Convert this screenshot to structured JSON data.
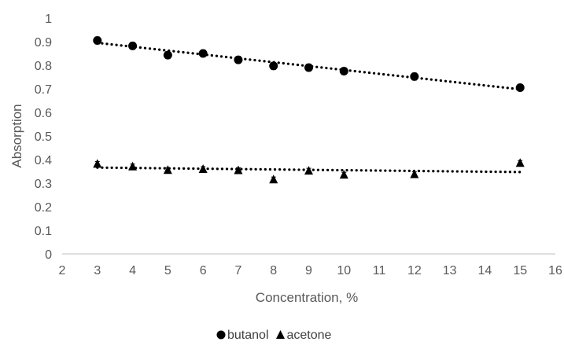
{
  "chart_data": {
    "type": "scatter",
    "title": "",
    "xlabel": "Concentration, %",
    "ylabel": "Absorption",
    "xlim": [
      2,
      16
    ],
    "ylim": [
      0,
      1
    ],
    "x_ticks": [
      "2",
      "3",
      "4",
      "5",
      "6",
      "7",
      "8",
      "9",
      "10",
      "11",
      "12",
      "13",
      "14",
      "15",
      "16"
    ],
    "y_ticks": [
      "0",
      "0.1",
      "0.2",
      "0.3",
      "0.4",
      "0.5",
      "0.6",
      "0.7",
      "0.8",
      "0.9",
      "1"
    ],
    "grid": false,
    "legend_position": "bottom",
    "trendline": "linear, dotted",
    "series": [
      {
        "name": "butanol",
        "marker": "circle",
        "color": "#000000",
        "error_bars": true,
        "x": [
          3,
          4,
          5,
          6,
          7,
          8,
          9,
          10,
          12,
          15
        ],
        "y": [
          0.905,
          0.882,
          0.843,
          0.85,
          0.823,
          0.797,
          0.79,
          0.775,
          0.752,
          0.705
        ],
        "error": [
          0.015,
          0.015,
          0.015,
          0.015,
          0.015,
          0.015,
          0.015,
          0.015,
          0.015,
          0.012
        ],
        "trend": [
          0.895,
          0.698
        ]
      },
      {
        "name": "acetone",
        "marker": "triangle",
        "color": "#000000",
        "error_bars": true,
        "x": [
          3,
          4,
          5,
          6,
          7,
          8,
          9,
          10,
          12,
          15
        ],
        "y": [
          0.382,
          0.371,
          0.356,
          0.36,
          0.355,
          0.316,
          0.353,
          0.336,
          0.338,
          0.386
        ],
        "error": [
          0.01,
          0.01,
          0.01,
          0.01,
          0.01,
          0.01,
          0.01,
          0.01,
          0.01,
          0.01
        ],
        "trend": [
          0.366,
          0.347
        ]
      }
    ]
  }
}
